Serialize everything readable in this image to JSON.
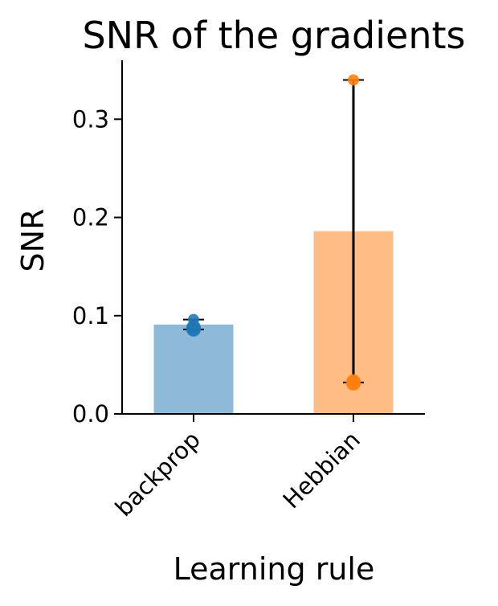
{
  "chart_data": {
    "type": "bar",
    "title": "SNR of the gradients",
    "xlabel": "Learning rule",
    "ylabel": "SNR",
    "categories": [
      "backprop",
      "Hebbian"
    ],
    "values": [
      0.091,
      0.186
    ],
    "bar_colors": [
      "#8fb9d9",
      "#ffbd86"
    ],
    "point_colors": [
      "#1f77b4",
      "#ff7f0e"
    ],
    "error_bars": [
      {
        "low": 0.086,
        "high": 0.096
      },
      {
        "low": 0.032,
        "high": 0.34
      }
    ],
    "points": [
      [
        0.086,
        0.088,
        0.096
      ],
      [
        0.031,
        0.033,
        0.34
      ]
    ],
    "ylim": [
      0,
      0.36
    ],
    "yticks": [
      0.0,
      0.1,
      0.2,
      0.3
    ],
    "ytick_labels": [
      "0.0",
      "0.1",
      "0.2",
      "0.3"
    ],
    "grid": false,
    "legend": "none"
  }
}
